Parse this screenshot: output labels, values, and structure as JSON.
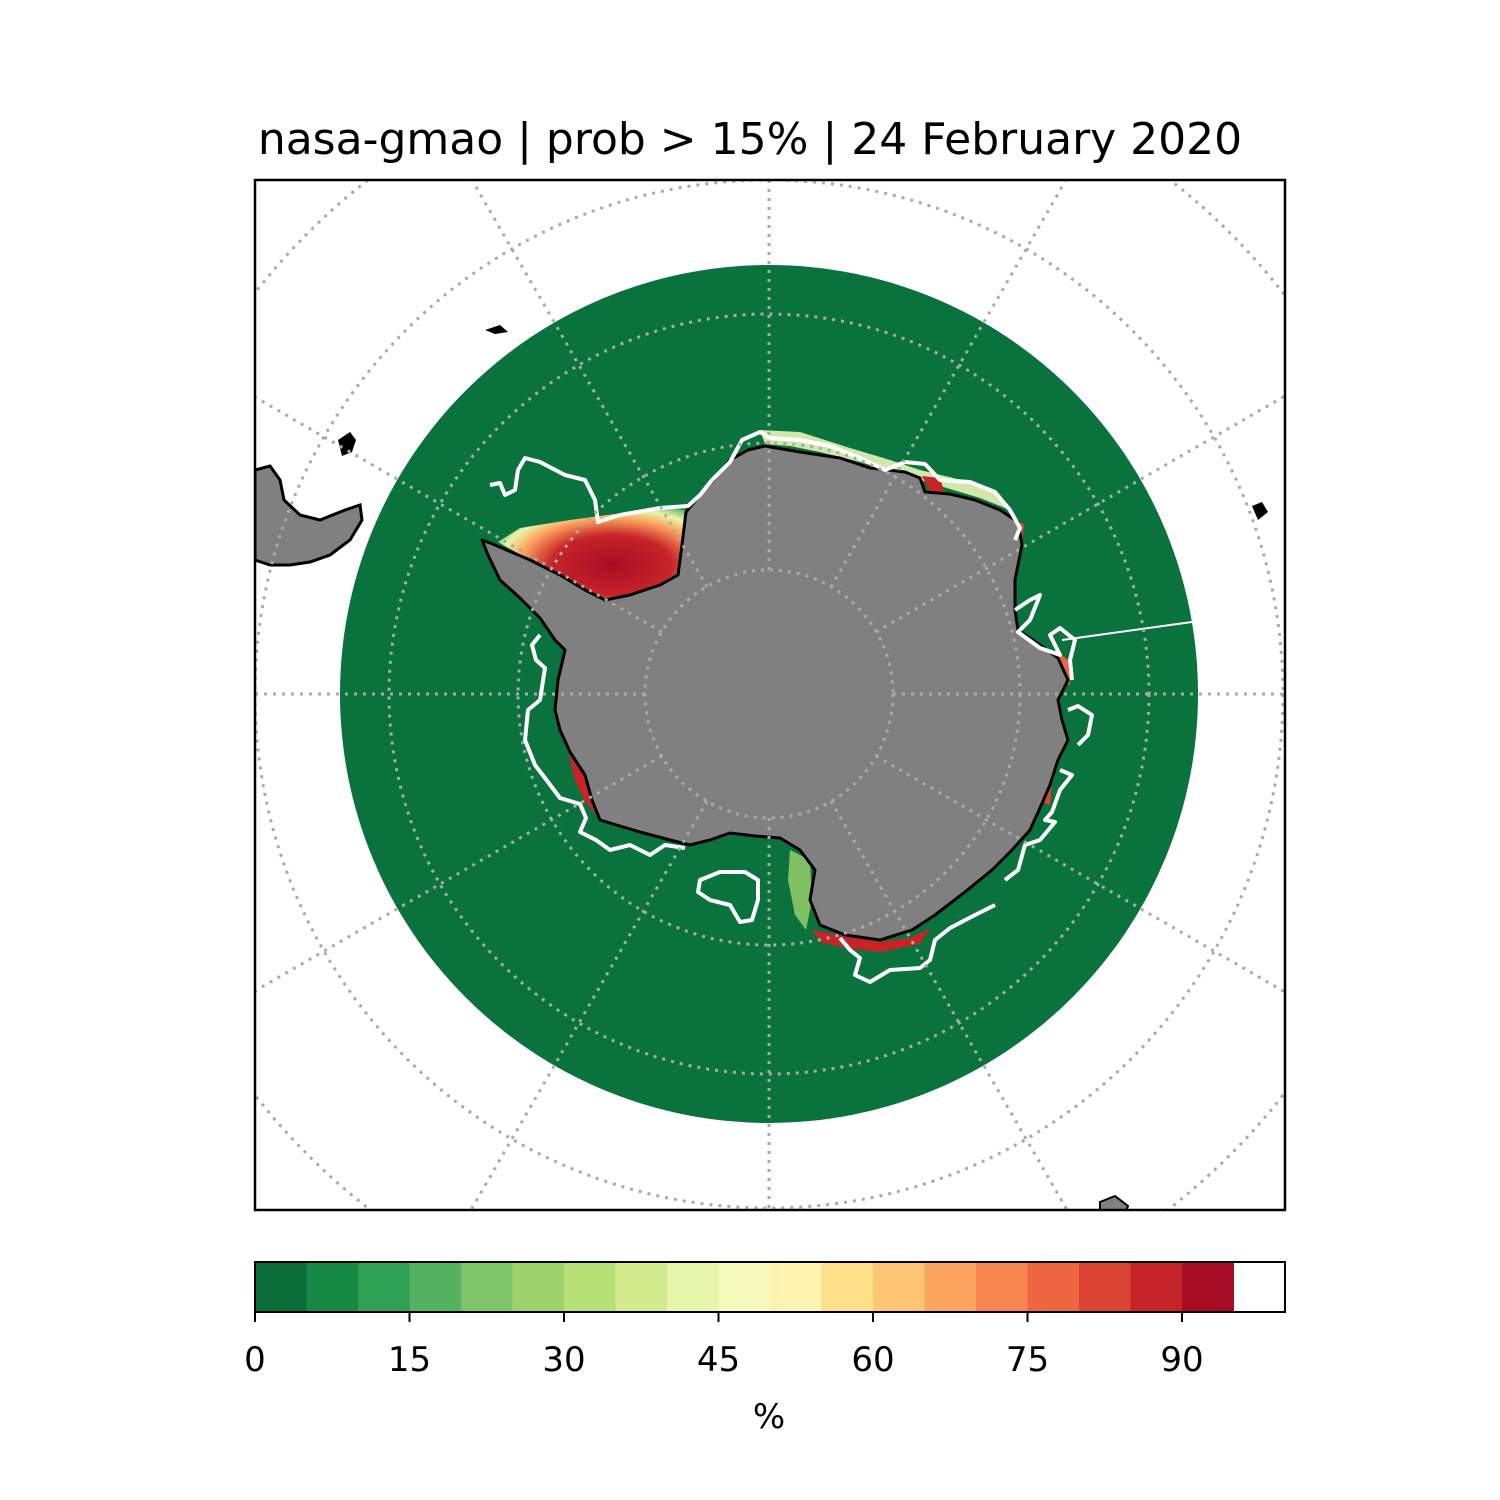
{
  "title": "nasa-gmao | prob > 15% | 24 February 2020",
  "map": {
    "projection": "south-polar-stereographic",
    "background_color": "#ffffff",
    "ocean_probability_color": "#0a723c",
    "land_color": "#808080",
    "coastline_color": "#000000",
    "observed_ice_edge_color": "#ffffff",
    "gridline_color": "#aaaaaa",
    "gridline_style": "dotted"
  },
  "colorbar": {
    "unit_label": "%",
    "range": [
      0,
      100
    ],
    "tick_values": [
      0,
      15,
      30,
      45,
      60,
      75,
      90
    ],
    "tick_labels": [
      "0",
      "15",
      "30",
      "45",
      "60",
      "75",
      "90"
    ],
    "colors": [
      "#0b6d3a",
      "#148a45",
      "#2ea154",
      "#55b260",
      "#7ec56a",
      "#9dd26c",
      "#b7e075",
      "#d2ec8d",
      "#e7f5aa",
      "#f6fbbd",
      "#fff3b0",
      "#fee08b",
      "#fdc574",
      "#fca55e",
      "#f8874f",
      "#ee6541",
      "#dc4433",
      "#c72428",
      "#a80d26"
    ]
  }
}
